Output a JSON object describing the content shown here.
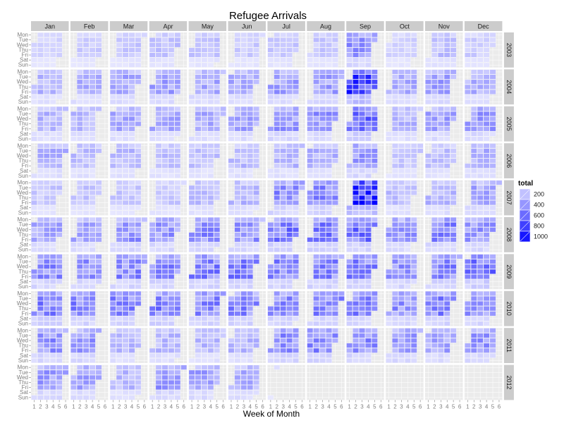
{
  "chart_data": {
    "type": "heatmap",
    "title": "Refugee Arrivals",
    "xlabel": "Week of Month",
    "ylabel": "",
    "months": [
      "Jan",
      "Feb",
      "Mar",
      "Apr",
      "May",
      "Jun",
      "Jul",
      "Aug",
      "Sep",
      "Oct",
      "Nov",
      "Dec"
    ],
    "years": [
      "2003",
      "2004",
      "2005",
      "2006",
      "2007",
      "2008",
      "2009",
      "2010",
      "2011",
      "2012"
    ],
    "weekdays": [
      "Mon",
      "Tue",
      "Wed",
      "Thu",
      "Fri",
      "Sat",
      "Sun"
    ],
    "week_ticks": [
      "1",
      "2",
      "3",
      "4",
      "5",
      "6"
    ],
    "legend": {
      "title": "total",
      "breaks": [
        200,
        400,
        600,
        800,
        1000
      ],
      "labels": [
        "200",
        "400",
        "600",
        "800",
        "1000"
      ]
    },
    "colors": {
      "panel_bg": "#ebebeb",
      "strip_bg": "#cccccc",
      "low": "#e8e8ff",
      "high": "#0000ff"
    },
    "monthly_mean_total": [
      [
        110,
        140,
        170,
        190,
        180,
        150,
        170,
        160,
        400,
        120,
        200,
        140
      ],
      [
        250,
        260,
        300,
        330,
        310,
        290,
        330,
        330,
        750,
        280,
        330,
        290
      ],
      [
        250,
        260,
        300,
        290,
        290,
        310,
        360,
        380,
        560,
        250,
        330,
        360
      ],
      [
        260,
        230,
        230,
        200,
        200,
        230,
        230,
        250,
        370,
        170,
        200,
        260
      ],
      [
        170,
        180,
        170,
        160,
        210,
        240,
        420,
        430,
        880,
        210,
        260,
        300
      ],
      [
        310,
        300,
        370,
        370,
        420,
        400,
        500,
        470,
        520,
        350,
        440,
        360
      ],
      [
        420,
        400,
        430,
        430,
        460,
        470,
        440,
        440,
        450,
        400,
        450,
        520
      ],
      [
        460,
        450,
        450,
        470,
        440,
        440,
        410,
        430,
        470,
        400,
        450,
        360
      ],
      [
        400,
        360,
        230,
        230,
        240,
        230,
        420,
        430,
        420,
        360,
        310,
        370
      ],
      [
        350,
        320,
        230,
        360,
        320,
        270,
        90,
        null,
        null,
        null,
        null,
        null
      ]
    ]
  }
}
